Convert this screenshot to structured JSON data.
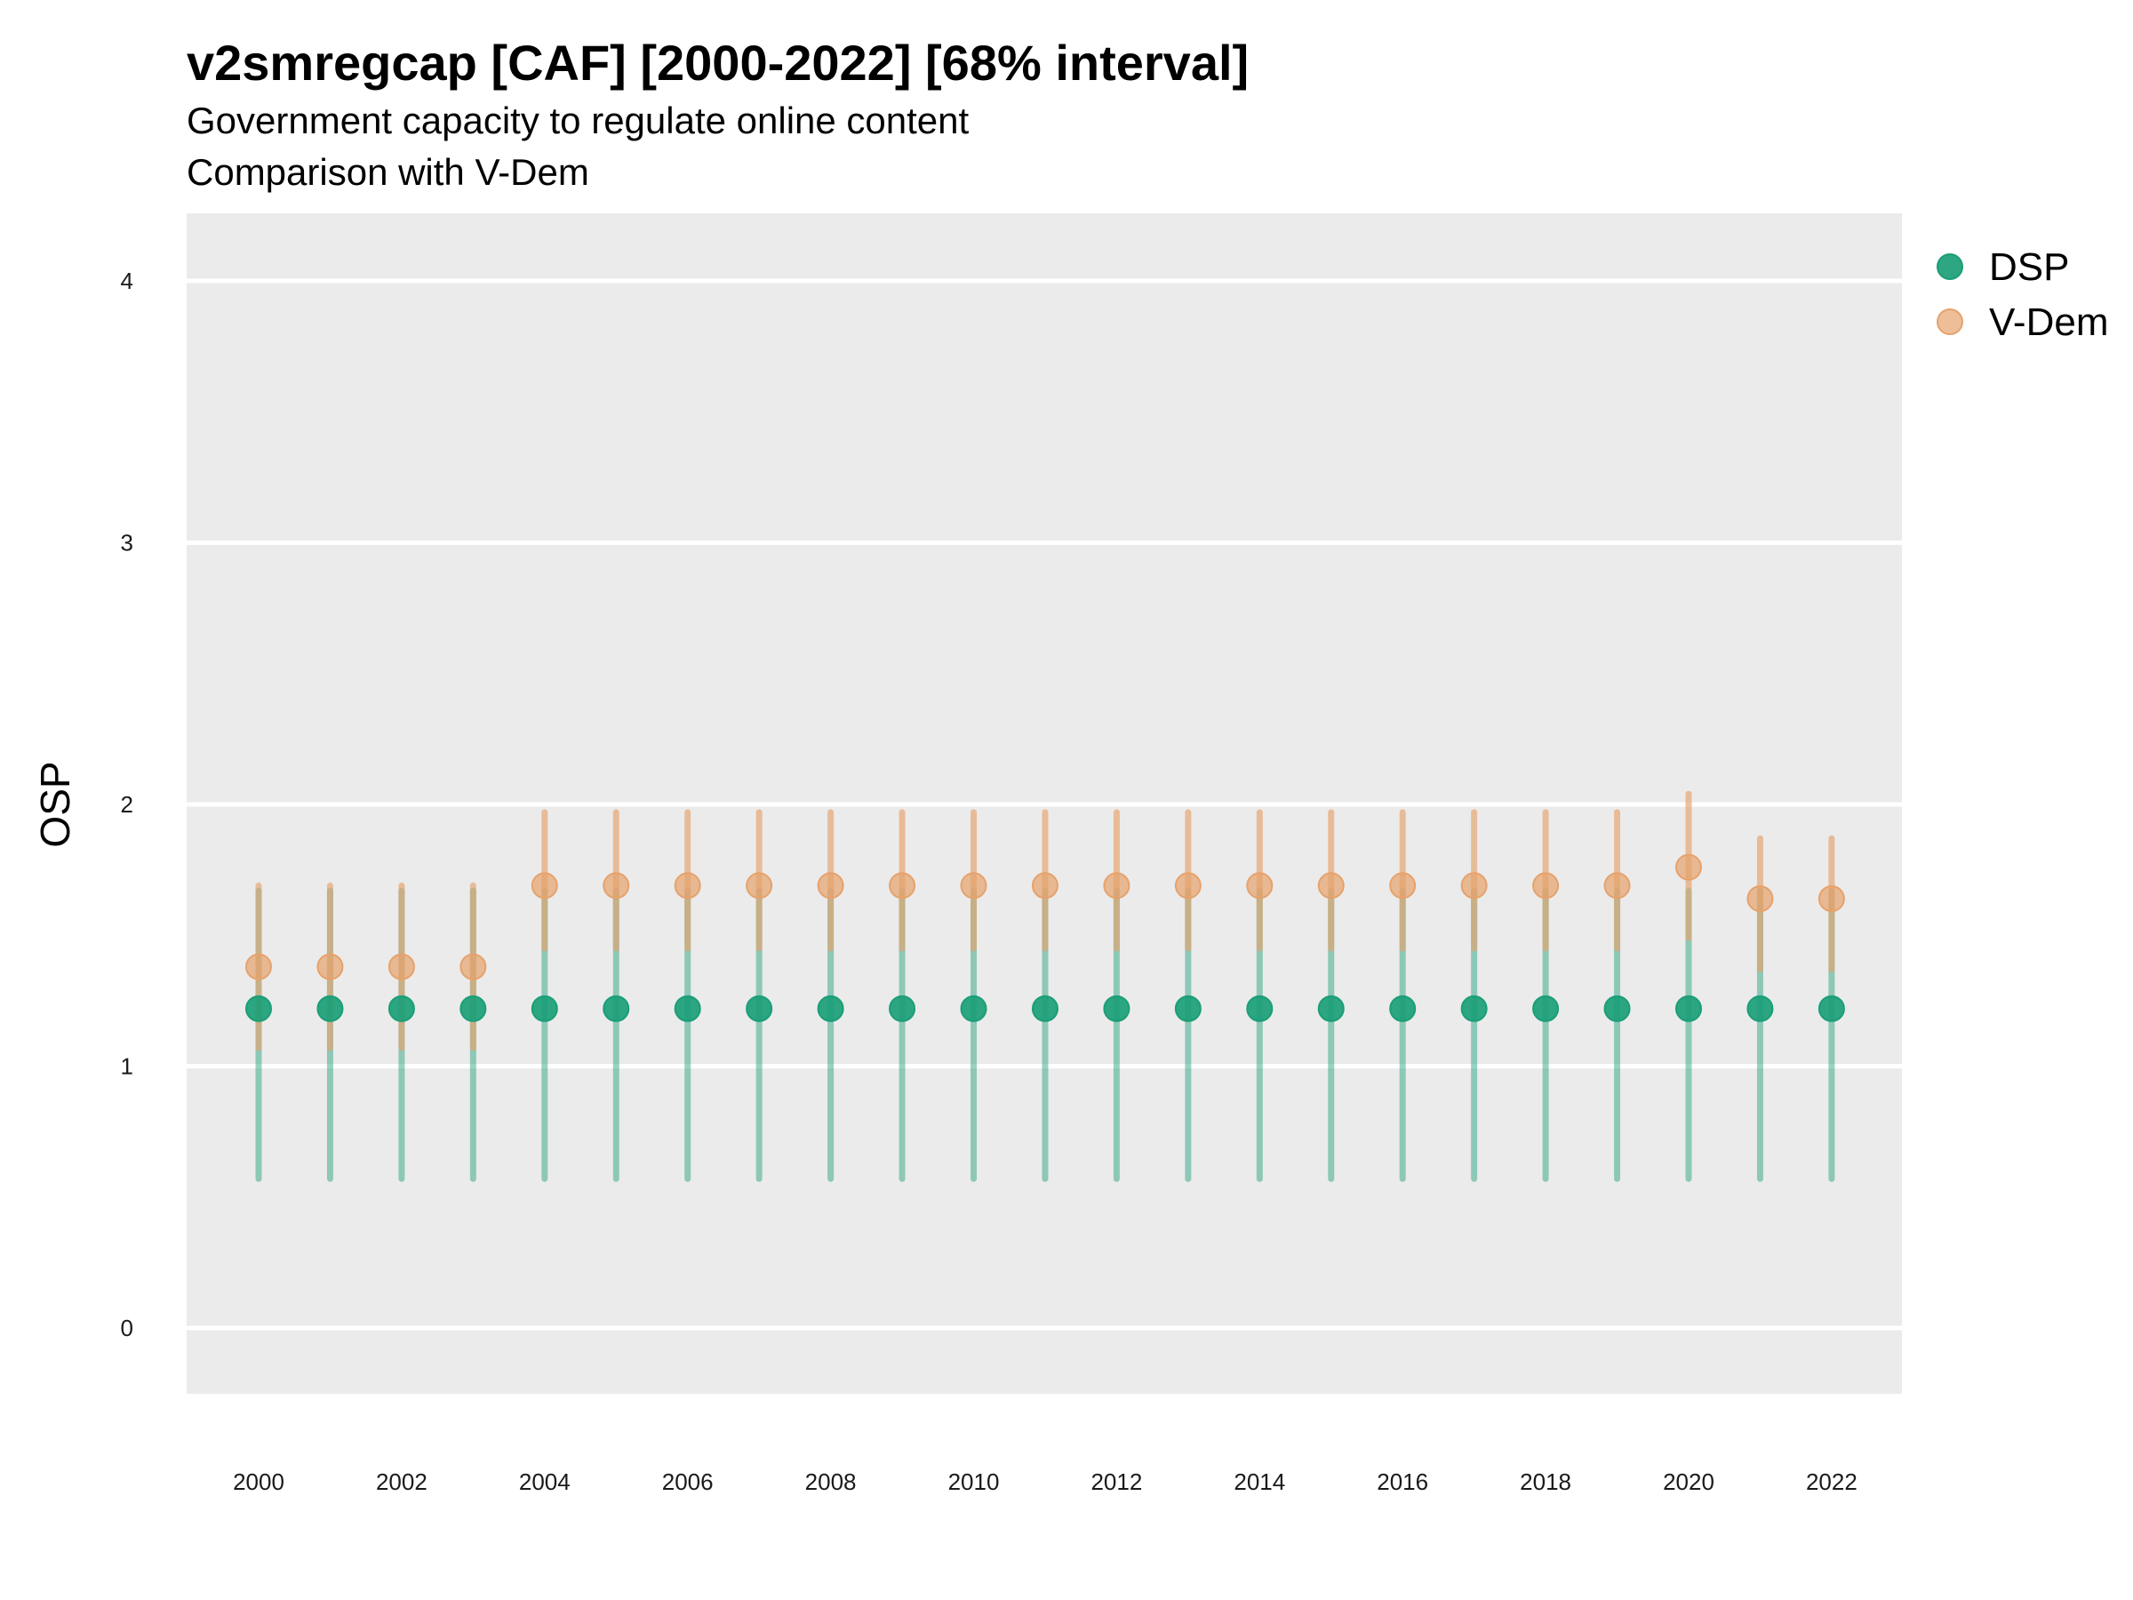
{
  "chart_data": {
    "type": "scatter",
    "title": "v2smregcap [CAF] [2000-2022] [68% interval]",
    "subtitle": [
      "Government capacity to regulate online content",
      "Comparison with V-Dem"
    ],
    "xlabel": "",
    "ylabel": "OSP",
    "ylim": [
      -0.25,
      4.25
    ],
    "xlim": [
      1999,
      2023
    ],
    "yticks": [
      0,
      1,
      2,
      3,
      4
    ],
    "xticks": [
      2000,
      2002,
      2004,
      2006,
      2008,
      2010,
      2012,
      2014,
      2016,
      2018,
      2020,
      2022
    ],
    "grid": true,
    "legend_position": "right",
    "x": [
      2000,
      2001,
      2002,
      2003,
      2004,
      2005,
      2006,
      2007,
      2008,
      2009,
      2010,
      2011,
      2012,
      2013,
      2014,
      2015,
      2016,
      2017,
      2018,
      2019,
      2020,
      2021,
      2022
    ],
    "series": [
      {
        "name": "DSP",
        "color": "#1b9e77",
        "values": [
          1.22,
          1.22,
          1.22,
          1.22,
          1.22,
          1.22,
          1.22,
          1.22,
          1.22,
          1.22,
          1.22,
          1.22,
          1.22,
          1.22,
          1.22,
          1.22,
          1.22,
          1.22,
          1.22,
          1.22,
          1.22,
          1.22,
          1.22
        ],
        "lower": [
          0.57,
          0.57,
          0.57,
          0.57,
          0.57,
          0.57,
          0.57,
          0.57,
          0.57,
          0.57,
          0.57,
          0.57,
          0.57,
          0.57,
          0.57,
          0.57,
          0.57,
          0.57,
          0.57,
          0.57,
          0.57,
          0.57,
          0.57
        ],
        "upper": [
          1.67,
          1.67,
          1.67,
          1.67,
          1.67,
          1.67,
          1.67,
          1.67,
          1.67,
          1.67,
          1.67,
          1.67,
          1.67,
          1.67,
          1.67,
          1.67,
          1.67,
          1.67,
          1.67,
          1.67,
          1.67,
          1.67,
          1.67
        ]
      },
      {
        "name": "V-Dem",
        "color": "#e6a26c",
        "values": [
          1.38,
          1.38,
          1.38,
          1.38,
          1.69,
          1.69,
          1.69,
          1.69,
          1.69,
          1.69,
          1.69,
          1.69,
          1.69,
          1.69,
          1.69,
          1.69,
          1.69,
          1.69,
          1.69,
          1.69,
          1.76,
          1.64,
          1.64
        ],
        "lower": [
          1.07,
          1.07,
          1.07,
          1.07,
          1.45,
          1.45,
          1.45,
          1.45,
          1.45,
          1.45,
          1.45,
          1.45,
          1.45,
          1.45,
          1.45,
          1.45,
          1.45,
          1.45,
          1.45,
          1.45,
          1.49,
          1.37,
          1.37
        ],
        "upper": [
          1.69,
          1.69,
          1.69,
          1.69,
          1.97,
          1.97,
          1.97,
          1.97,
          1.97,
          1.97,
          1.97,
          1.97,
          1.97,
          1.97,
          1.97,
          1.97,
          1.97,
          1.97,
          1.97,
          1.97,
          2.04,
          1.87,
          1.87
        ]
      }
    ]
  }
}
